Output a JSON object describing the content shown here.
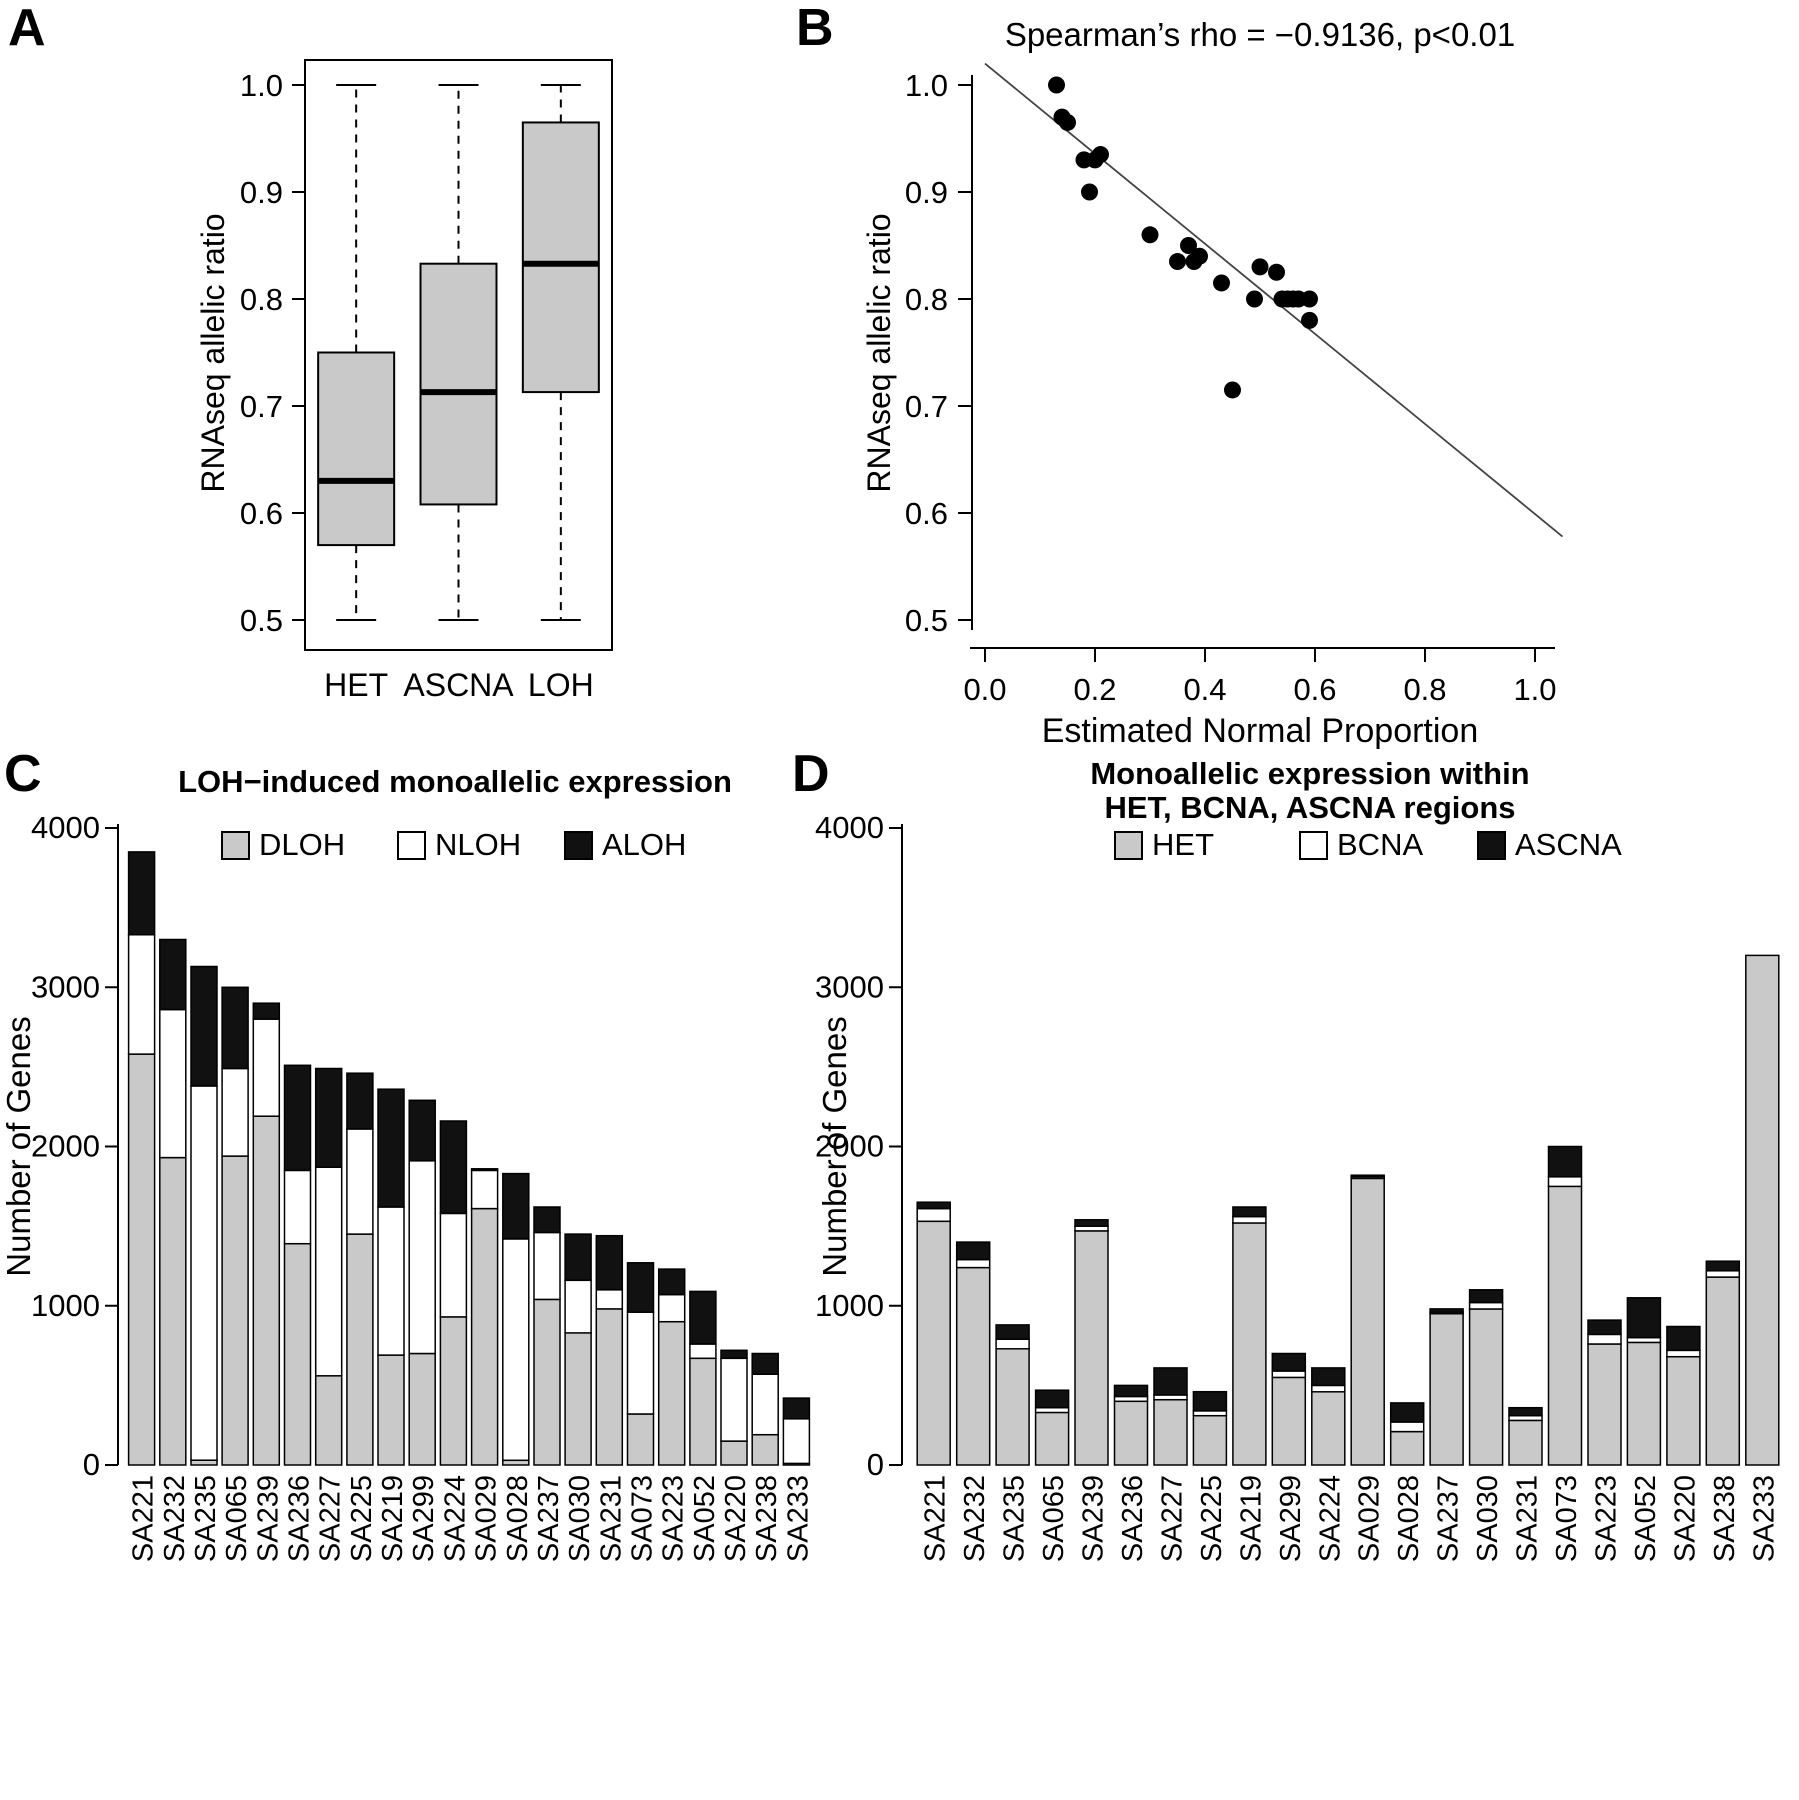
{
  "panels": {
    "a": "A",
    "b": "B",
    "c": "C",
    "d": "D"
  },
  "colors": {
    "gray_fill": "#c9c9c9",
    "black_fill": "#111111",
    "white_fill": "#ffffff",
    "line": "#444444"
  },
  "chart_data": [
    {
      "id": "A",
      "type": "boxplot",
      "title": "",
      "ylabel": "RNAseq allelic ratio",
      "ylim": [
        0.5,
        1.0
      ],
      "yticks": [
        0.5,
        0.6,
        0.7,
        0.8,
        0.9,
        1.0
      ],
      "categories": [
        "HET",
        "ASCNA",
        "LOH"
      ],
      "box_fill": "#c9c9c9",
      "boxes": [
        {
          "category": "HET",
          "whisker_low": 0.5,
          "q1": 0.57,
          "median": 0.63,
          "q3": 0.75,
          "whisker_high": 1.0
        },
        {
          "category": "ASCNA",
          "whisker_low": 0.5,
          "q1": 0.608,
          "median": 0.713,
          "q3": 0.833,
          "whisker_high": 1.0
        },
        {
          "category": "LOH",
          "whisker_low": 0.5,
          "q1": 0.713,
          "median": 0.833,
          "q3": 0.965,
          "whisker_high": 1.0
        }
      ]
    },
    {
      "id": "B",
      "type": "scatter",
      "title": "Spearman’s rho = −0.9136, p<0.01",
      "xlabel": "Estimated Normal Proportion",
      "ylabel": "RNAseq allelic ratio",
      "xlim": [
        0.0,
        1.05
      ],
      "ylim": [
        0.5,
        1.0
      ],
      "xticks": [
        0.0,
        0.2,
        0.4,
        0.6,
        0.8,
        1.0
      ],
      "yticks": [
        0.5,
        0.6,
        0.7,
        0.8,
        0.9,
        1.0
      ],
      "points": [
        [
          0.13,
          1.0
        ],
        [
          0.14,
          0.97
        ],
        [
          0.15,
          0.965
        ],
        [
          0.18,
          0.93
        ],
        [
          0.19,
          0.9
        ],
        [
          0.2,
          0.93
        ],
        [
          0.21,
          0.935
        ],
        [
          0.3,
          0.86
        ],
        [
          0.35,
          0.835
        ],
        [
          0.37,
          0.85
        ],
        [
          0.38,
          0.835
        ],
        [
          0.39,
          0.84
        ],
        [
          0.43,
          0.815
        ],
        [
          0.45,
          0.715
        ],
        [
          0.49,
          0.8
        ],
        [
          0.5,
          0.83
        ],
        [
          0.53,
          0.825
        ],
        [
          0.54,
          0.8
        ],
        [
          0.55,
          0.8
        ],
        [
          0.56,
          0.8
        ],
        [
          0.57,
          0.8
        ],
        [
          0.59,
          0.8
        ],
        [
          0.59,
          0.78
        ]
      ],
      "trend_line": {
        "x1": 0.0,
        "y1": 1.02,
        "x2": 1.05,
        "y2": 0.578
      }
    },
    {
      "id": "C",
      "type": "stacked_bar",
      "title": "LOH−induced monoallelic expression",
      "ylabel": "Number of Genes",
      "ylim": [
        0,
        4000
      ],
      "yticks": [
        0,
        1000,
        2000,
        3000,
        4000
      ],
      "legend_position": "top",
      "categories": [
        "SA221",
        "SA232",
        "SA235",
        "SA065",
        "SA239",
        "SA236",
        "SA227",
        "SA225",
        "SA219",
        "SA299",
        "SA224",
        "SA029",
        "SA028",
        "SA237",
        "SA030",
        "SA231",
        "SA073",
        "SA223",
        "SA052",
        "SA220",
        "SA238",
        "SA233"
      ],
      "series": [
        {
          "name": "DLOH",
          "color": "#c9c9c9",
          "values": [
            2580,
            1930,
            30,
            1940,
            2190,
            1390,
            560,
            1450,
            690,
            700,
            930,
            1610,
            30,
            1040,
            830,
            980,
            320,
            900,
            670,
            150,
            190,
            10
          ]
        },
        {
          "name": "NLOH",
          "color": "#ffffff",
          "values": [
            750,
            930,
            2350,
            550,
            610,
            460,
            1310,
            660,
            930,
            1210,
            650,
            240,
            1390,
            420,
            330,
            120,
            640,
            170,
            90,
            520,
            380,
            280
          ]
        },
        {
          "name": "ALOH",
          "color": "#111111",
          "values": [
            520,
            440,
            750,
            510,
            100,
            660,
            620,
            350,
            740,
            380,
            580,
            10,
            410,
            160,
            290,
            340,
            310,
            160,
            330,
            50,
            130,
            130
          ]
        }
      ]
    },
    {
      "id": "D",
      "type": "stacked_bar",
      "title_lines": [
        "Monoallelic expression within",
        "HET, BCNA, ASCNA regions"
      ],
      "ylabel": "Number of Genes",
      "ylim": [
        0,
        4000
      ],
      "yticks": [
        0,
        1000,
        2000,
        3000,
        4000
      ],
      "legend_position": "top",
      "categories": [
        "SA221",
        "SA232",
        "SA235",
        "SA065",
        "SA239",
        "SA236",
        "SA227",
        "SA225",
        "SA219",
        "SA299",
        "SA224",
        "SA029",
        "SA028",
        "SA237",
        "SA030",
        "SA231",
        "SA073",
        "SA223",
        "SA052",
        "SA220",
        "SA238",
        "SA233"
      ],
      "series": [
        {
          "name": "HET",
          "color": "#c9c9c9",
          "values": [
            1530,
            1240,
            730,
            330,
            1470,
            400,
            410,
            310,
            1520,
            550,
            460,
            1800,
            210,
            950,
            980,
            280,
            1750,
            760,
            770,
            680,
            1180,
            3200
          ]
        },
        {
          "name": "BCNA",
          "color": "#ffffff",
          "values": [
            80,
            50,
            60,
            30,
            30,
            30,
            30,
            30,
            40,
            40,
            40,
            10,
            60,
            10,
            40,
            30,
            60,
            60,
            30,
            40,
            40,
            0
          ]
        },
        {
          "name": "ASCNA",
          "color": "#111111",
          "values": [
            40,
            110,
            90,
            110,
            40,
            70,
            170,
            120,
            60,
            110,
            110,
            10,
            120,
            20,
            80,
            50,
            190,
            90,
            250,
            150,
            60,
            0
          ]
        }
      ]
    }
  ]
}
